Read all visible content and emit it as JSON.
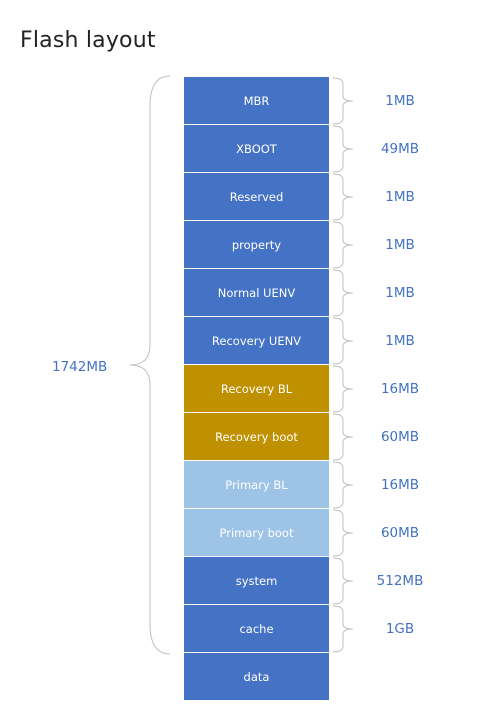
{
  "title": "Flash layout",
  "total_size": "1742MB",
  "colors": {
    "default": "#4472c4",
    "recovery": "#bf9000",
    "primary": "#9dc3e6",
    "size_text": "#4472c4",
    "brace": "#bfbfbf"
  },
  "partitions": [
    {
      "label": "MBR",
      "size": "1MB",
      "group": "default"
    },
    {
      "label": "XBOOT",
      "size": "49MB",
      "group": "default"
    },
    {
      "label": "Reserved",
      "size": "1MB",
      "group": "default"
    },
    {
      "label": "property",
      "size": "1MB",
      "group": "default"
    },
    {
      "label": "Normal UENV",
      "size": "1MB",
      "group": "default"
    },
    {
      "label": "Recovery UENV",
      "size": "1MB",
      "group": "default"
    },
    {
      "label": "Recovery BL",
      "size": "16MB",
      "group": "recovery"
    },
    {
      "label": "Recovery boot",
      "size": "60MB",
      "group": "recovery"
    },
    {
      "label": "Primary BL",
      "size": "16MB",
      "group": "primary"
    },
    {
      "label": "Primary boot",
      "size": "60MB",
      "group": "primary"
    },
    {
      "label": "system",
      "size": "512MB",
      "group": "default"
    },
    {
      "label": "cache",
      "size": "1GB",
      "group": "default"
    },
    {
      "label": "data",
      "size": "",
      "group": "default"
    }
  ]
}
